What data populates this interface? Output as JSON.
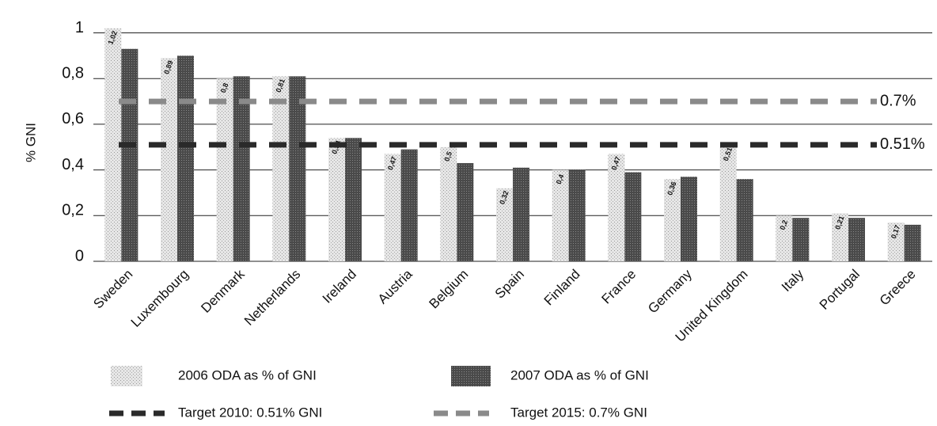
{
  "chart_data": {
    "type": "bar",
    "y_label": "% GNI",
    "categories": [
      "Sweden",
      "Luxembourg",
      "Denmark",
      "Netherlands",
      "Ireland",
      "Austria",
      "Belgium",
      "Spain",
      "Finland",
      "France",
      "Germany",
      "United Kingdom",
      "Italy",
      "Portugal",
      "Greece"
    ],
    "series": [
      {
        "name": "2006 ODA as % of GNI",
        "color": "#d4d4d4",
        "values": [
          1.02,
          0.89,
          0.8,
          0.81,
          0.54,
          0.47,
          0.5,
          0.32,
          0.4,
          0.47,
          0.36,
          0.51,
          0.2,
          0.21,
          0.17
        ],
        "value_labels": [
          "1,02",
          "0,89",
          "0,8",
          "0,81",
          "0,54",
          "0,47",
          "0,5",
          "0,32",
          "0,4",
          "0,47",
          "0,36",
          "0,51",
          "0,2",
          "0,21",
          "0,17"
        ]
      },
      {
        "name": "2007 ODA as % of GNI",
        "color": "#505050",
        "values": [
          0.93,
          0.9,
          0.81,
          0.81,
          0.54,
          0.49,
          0.43,
          0.41,
          0.4,
          0.39,
          0.37,
          0.36,
          0.19,
          0.19,
          0.16
        ]
      }
    ],
    "targets": [
      {
        "name": "Target 2010: 0.51% GNI",
        "value": 0.51,
        "label": "0.51%",
        "color": "#2a2a2a"
      },
      {
        "name": "Target 2015: 0.7% GNI",
        "value": 0.7,
        "label": "0.7%",
        "color": "#8a8a8a"
      }
    ],
    "ylim": [
      0,
      1.04
    ],
    "yticks": [
      0,
      {
        "value": 0.2,
        "label": "0,2"
      },
      {
        "value": 0.4,
        "label": "0,4"
      },
      {
        "value": 0.6,
        "label": "0,6"
      },
      {
        "value": 0.8,
        "label": "0,8"
      },
      1
    ],
    "grid": true
  }
}
